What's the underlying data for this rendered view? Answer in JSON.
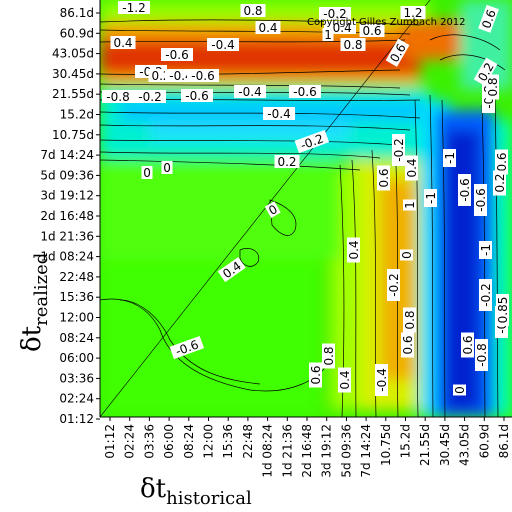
{
  "chart_data": {
    "type": "heatmap",
    "title": "",
    "copyright": "Copyright Gilles Zumbach 2012",
    "xlabel": {
      "symbol": "δt",
      "subscript": "historical"
    },
    "ylabel": {
      "symbol": "δt",
      "subscript": "realized"
    },
    "x_ticks": [
      "01:12",
      "02:24",
      "03:36",
      "06:00",
      "08:24",
      "12:00",
      "15:36",
      "22:48",
      "1d 08:24",
      "1d 21:36",
      "2d 16:48",
      "3d 19:12",
      "5d 09:36",
      "7d 14:24",
      "10.75d",
      "15.2d",
      "21.55d",
      "30.45d",
      "43.05d",
      "60.9d",
      "86.1d"
    ],
    "y_ticks": [
      "86.1d",
      "60.9d",
      "43.05d",
      "30.45d",
      "21.55d",
      "15.2d",
      "10.75d",
      "7d 14:24",
      "5d 09:36",
      "3d 19:12",
      "2d 16:48",
      "1d 21:36",
      "1d 08:24",
      "22:48",
      "15:36",
      "12:00",
      "08:24",
      "06:00",
      "03:36",
      "02:24",
      "01:12"
    ],
    "grid": false,
    "colorscale": [
      "#0000a8",
      "#0050ff",
      "#00c8ff",
      "#00f0c0",
      "#00ff40",
      "#70ff00",
      "#c8f000",
      "#f0d000",
      "#f09000",
      "#e03000"
    ],
    "contour_labels": [
      "-1.2",
      "0.8",
      "0.4",
      "-0.2",
      "-0.4",
      "0.6",
      "1.2",
      "1",
      "0.8",
      "0.6",
      "0.6",
      "0.4",
      "-0.4",
      "-0.6",
      "-0.2",
      "0.2",
      "-0.4",
      "-0.6",
      "-0.8",
      "-0.2",
      "-0.6",
      "-0.4",
      "-0.6",
      "-0.4",
      "-0.2",
      "0.2",
      "0",
      "0",
      "0",
      "0.4",
      "-0.6",
      "0.8",
      "0.6",
      "0.4",
      "-0.4",
      "0.6",
      "0.8",
      "-0.2",
      "0",
      "-0.2",
      "0.4",
      "0.6",
      "-1",
      "-1",
      "-0.6",
      "-0.6",
      "-0.8",
      "0.8",
      "0.6",
      "0.2",
      "1",
      "0.4",
      "0",
      "-0.2",
      "-0.8",
      "0.6",
      "-0.2",
      "0.2",
      "-1",
      "0.85"
    ]
  }
}
